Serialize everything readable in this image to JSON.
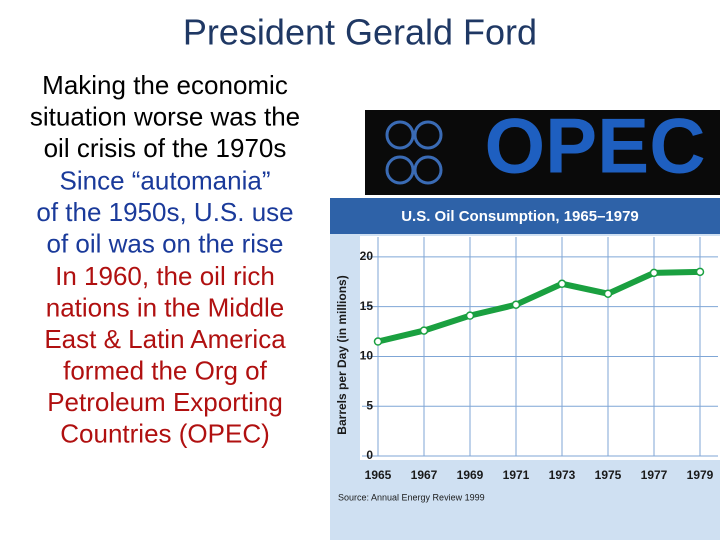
{
  "title": "President Gerald Ford",
  "paragraphs": [
    {
      "lines": [
        "Making the economic",
        "situation worse was the",
        "oil crisis of the 1970s"
      ],
      "color": "#000000"
    },
    {
      "lines": [
        "Since “automania”",
        "of the 1950s, U.S. use",
        "of oil was on the rise"
      ],
      "color": "#1a3a9a"
    },
    {
      "lines": [
        "In 1960, the oil rich",
        "nations in the Middle",
        "East & Latin America",
        "formed the Org of",
        "Petroleum Exporting",
        "Countries (OPEC)"
      ],
      "color": "#b01010"
    }
  ],
  "logo": {
    "text": "OPEC"
  },
  "chart": {
    "type": "line",
    "title": "U.S. Oil Consumption, 1965–1979",
    "y_label": "Barrels per Day (in millions)",
    "x": [
      1965,
      1967,
      1969,
      1971,
      1973,
      1975,
      1977,
      1979
    ],
    "values": [
      11.5,
      12.6,
      14.1,
      15.2,
      17.3,
      16.3,
      18.4,
      18.5
    ],
    "color": "#1aa040",
    "xlim": [
      1965,
      1979
    ],
    "xticks": [
      1965,
      1967,
      1969,
      1971,
      1973,
      1975,
      1977,
      1979
    ],
    "ylim": [
      0,
      22
    ],
    "yticks": [
      0,
      5,
      10,
      15,
      20
    ],
    "source": "Source: Annual Energy Review 1999"
  }
}
